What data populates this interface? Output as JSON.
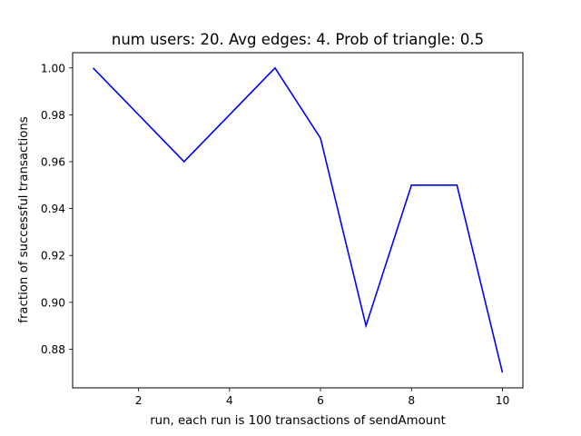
{
  "chart_data": {
    "type": "line",
    "title": "num users: 20. Avg edges: 4. Prob of triangle: 0.5",
    "xlabel": "run, each run is 100 transactions of sendAmount",
    "ylabel": "fraction of successful transactions",
    "x": [
      1,
      2,
      3,
      4,
      5,
      6,
      7,
      8,
      9,
      10
    ],
    "series": [
      {
        "values": [
          1.0,
          0.98,
          0.96,
          0.98,
          1.0,
          0.97,
          0.89,
          0.95,
          0.95,
          0.87
        ],
        "color": "#0000ff"
      }
    ],
    "xlim": [
      0.55,
      10.45
    ],
    "ylim": [
      0.8635,
      1.0065
    ],
    "xticks": [
      2,
      4,
      6,
      8,
      10
    ],
    "xtick_labels": [
      "2",
      "4",
      "6",
      "8",
      "10"
    ],
    "yticks": [
      0.88,
      0.9,
      0.92,
      0.94,
      0.96,
      0.98,
      1.0
    ],
    "ytick_labels": [
      "0.88",
      "0.90",
      "0.92",
      "0.94",
      "0.96",
      "0.98",
      "1.00"
    ],
    "grid": false,
    "legend": null
  }
}
